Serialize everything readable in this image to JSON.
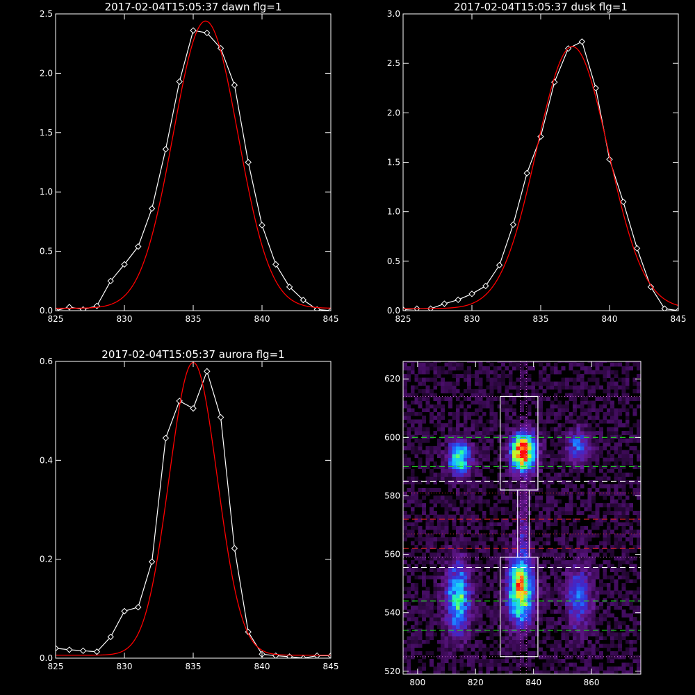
{
  "chart_data": [
    {
      "type": "line",
      "title": "2017-02-04T15:05:37 dawn flg=1",
      "xlabel": "",
      "ylabel": "",
      "xlim": [
        825,
        845
      ],
      "ylim": [
        0,
        2.5
      ],
      "xticks": [
        825,
        830,
        835,
        840,
        845
      ],
      "xtick_labels": [
        "825",
        "830",
        "835",
        "840",
        "845"
      ],
      "yticks": [
        0,
        0.5,
        1,
        1.5,
        2,
        2.5
      ],
      "ytick_labels": [
        "0.0",
        "0.5",
        "1.0",
        "1.5",
        "2.0",
        "2.5"
      ],
      "grid": false,
      "series": [
        {
          "color": "#ffffff",
          "marker": "diamond",
          "x": [
            825,
            826,
            827,
            828,
            829,
            830,
            831,
            832,
            833,
            834,
            835,
            836,
            837,
            838,
            839,
            840,
            841,
            842,
            843,
            844,
            845
          ],
          "y": [
            0.0,
            0.03,
            0.01,
            0.04,
            0.25,
            0.39,
            0.54,
            0.86,
            1.36,
            1.93,
            2.36,
            2.34,
            2.21,
            1.9,
            1.25,
            0.72,
            0.39,
            0.2,
            0.09,
            0.01,
            0.0
          ]
        },
        {
          "color": "#ff0000",
          "marker": "none",
          "curve": "gaussian",
          "center": 835.9,
          "sigma": 2.35,
          "amplitude": 2.42,
          "baseline": 0.02
        }
      ]
    },
    {
      "type": "line",
      "title": "2017-02-04T15:05:37 dusk flg=1",
      "xlabel": "",
      "ylabel": "",
      "xlim": [
        825,
        845
      ],
      "ylim": [
        0,
        3.0
      ],
      "xticks": [
        825,
        830,
        835,
        840,
        845
      ],
      "xtick_labels": [
        "825",
        "830",
        "835",
        "840",
        "845"
      ],
      "yticks": [
        0,
        0.5,
        1,
        1.5,
        2,
        2.5,
        3
      ],
      "ytick_labels": [
        "0.0",
        "0.5",
        "1.0",
        "1.5",
        "2.0",
        "2.5",
        "3.0"
      ],
      "grid": false,
      "series": [
        {
          "color": "#ffffff",
          "marker": "diamond",
          "x": [
            825,
            826,
            827,
            828,
            829,
            830,
            831,
            832,
            833,
            834,
            835,
            836,
            837,
            838,
            839,
            840,
            841,
            842,
            843,
            844,
            845
          ],
          "y": [
            0.01,
            0.02,
            0.02,
            0.07,
            0.11,
            0.17,
            0.25,
            0.46,
            0.87,
            1.39,
            1.76,
            2.31,
            2.65,
            2.72,
            2.25,
            1.53,
            1.1,
            0.63,
            0.24,
            0.02,
            0.0
          ]
        },
        {
          "color": "#ff0000",
          "marker": "none",
          "curve": "gaussian",
          "center": 837.3,
          "sigma": 2.6,
          "amplitude": 2.65,
          "baseline": 0.02
        }
      ]
    },
    {
      "type": "line",
      "title": "2017-02-04T15:05:37 aurora flg=1",
      "xlabel": "",
      "ylabel": "",
      "xlim": [
        825,
        845
      ],
      "ylim": [
        0,
        0.6
      ],
      "xticks": [
        825,
        830,
        835,
        840,
        845
      ],
      "xtick_labels": [
        "825",
        "830",
        "835",
        "840",
        "845"
      ],
      "yticks": [
        0,
        0.2,
        0.4,
        0.6
      ],
      "ytick_labels": [
        "0.0",
        "0.2",
        "0.4",
        "0.6"
      ],
      "grid": false,
      "series": [
        {
          "color": "#ffffff",
          "marker": "diamond",
          "x": [
            825,
            826,
            827,
            828,
            829,
            830,
            831,
            832,
            833,
            834,
            835,
            836,
            837,
            838,
            839,
            840,
            841,
            842,
            843,
            844,
            845
          ],
          "y": [
            0.02,
            0.017,
            0.015,
            0.013,
            0.043,
            0.095,
            0.103,
            0.195,
            0.445,
            0.52,
            0.505,
            0.58,
            0.487,
            0.222,
            0.053,
            0.008,
            0.005,
            0.003,
            0.0,
            0.005,
            0.005
          ]
        },
        {
          "color": "#ff0000",
          "marker": "none",
          "curve": "gaussian",
          "center": 835.0,
          "sigma": 1.75,
          "amplitude": 0.592,
          "baseline": 0.006
        }
      ]
    },
    {
      "type": "heatmap",
      "title": "",
      "xlabel": "",
      "ylabel": "",
      "xlim": [
        795,
        877
      ],
      "ylim": [
        519,
        626
      ],
      "xticks": [
        800,
        820,
        840,
        860
      ],
      "xtick_labels": [
        "800",
        "820",
        "840",
        "860"
      ],
      "yticks": [
        520,
        540,
        560,
        580,
        600,
        620
      ],
      "ytick_labels": [
        "520",
        "540",
        "560",
        "580",
        "600",
        "620"
      ],
      "grid": false,
      "cell_size": [
        1.3,
        1.3
      ],
      "colormap": [
        "#000000",
        "#3b0a55",
        "#6a1a99",
        "#3a2ad0",
        "#1f6cff",
        "#18c8ff",
        "#30ff9a",
        "#b4ff32",
        "#ffd21a",
        "#ff7a10",
        "#ff0a0a"
      ],
      "sources": [
        {
          "x": 836.5,
          "y": 595.0,
          "sx": 2.8,
          "sy": 4.2,
          "amp": 1.0
        },
        {
          "x": 835.5,
          "y": 548.0,
          "sx": 2.8,
          "sy": 7.5,
          "amp": 0.78
        },
        {
          "x": 836.3,
          "y": 570.0,
          "sx": 1.2,
          "sy": 8.0,
          "amp": 0.16
        },
        {
          "x": 814.5,
          "y": 593.0,
          "sx": 2.6,
          "sy": 4.0,
          "amp": 0.56
        },
        {
          "x": 814.0,
          "y": 545.0,
          "sx": 2.8,
          "sy": 8.0,
          "amp": 0.5
        },
        {
          "x": 855.5,
          "y": 597.0,
          "sx": 2.6,
          "sy": 4.2,
          "amp": 0.3
        },
        {
          "x": 855.5,
          "y": 545.0,
          "sx": 3.0,
          "sy": 7.5,
          "amp": 0.3
        }
      ],
      "boxes": [
        {
          "x": [
            828.5,
            841.5
          ],
          "y": [
            582,
            614
          ]
        },
        {
          "x": [
            828.5,
            841.5
          ],
          "y": [
            525,
            559
          ]
        }
      ],
      "connector": {
        "x": [
          834.5,
          838.5
        ],
        "y": [
          559,
          582
        ]
      },
      "vlines": [
        {
          "x": 835.5,
          "color": "#ff66ff",
          "style": "dotted"
        },
        {
          "x": 837.5,
          "color": "#ff66ff",
          "style": "dotted"
        }
      ],
      "hlines": [
        {
          "y": 614.0,
          "color": "#cc66cc",
          "style": "dotted"
        },
        {
          "y": 600.0,
          "color": "#22dd22",
          "style": "dashed"
        },
        {
          "y": 590.0,
          "color": "#22dd22",
          "style": "dashed"
        },
        {
          "y": 585.0,
          "color": "#ffffff",
          "style": "dashed"
        },
        {
          "y": 581.0,
          "color": "#cc3333",
          "style": "dotted"
        },
        {
          "y": 572.0,
          "color": "#dd2222",
          "style": "dashed"
        },
        {
          "y": 567.0,
          "color": "#cc3333",
          "style": "dotted"
        },
        {
          "y": 562.0,
          "color": "#dd2222",
          "style": "dashed"
        },
        {
          "y": 559.0,
          "color": "#cc66cc",
          "style": "dotted"
        },
        {
          "y": 555.5,
          "color": "#ffffff",
          "style": "dashed"
        },
        {
          "y": 544.0,
          "color": "#22dd22",
          "style": "dashed"
        },
        {
          "y": 534.0,
          "color": "#22dd22",
          "style": "dashed"
        },
        {
          "y": 525.0,
          "color": "#cc66cc",
          "style": "dotted"
        }
      ]
    }
  ]
}
